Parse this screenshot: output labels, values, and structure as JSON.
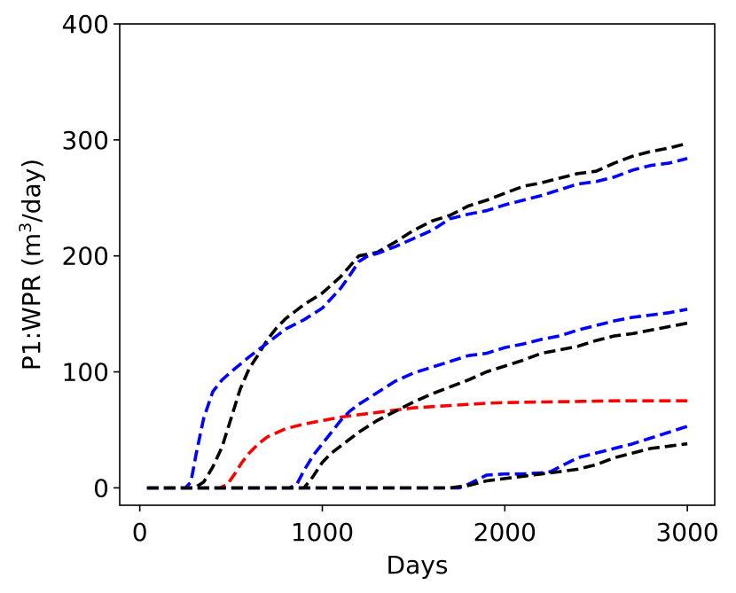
{
  "chart_data": {
    "type": "line",
    "xlabel": "Days",
    "ylabel_prefix": "P1:WPR (m",
    "ylabel_sup": "3",
    "ylabel_suffix": "/day)",
    "xlim": [
      -110,
      3150
    ],
    "ylim": [
      -15,
      400
    ],
    "xticks": [
      0,
      1000,
      2000,
      3000
    ],
    "yticks": [
      0,
      100,
      200,
      300,
      400
    ],
    "xtick_labels": [
      "0",
      "1000",
      "2000",
      "3000"
    ],
    "ytick_labels": [
      "0",
      "100",
      "200",
      "300",
      "400"
    ],
    "grid": false,
    "series": [
      {
        "color": "#000000",
        "x": [
          40,
          300,
          350,
          400,
          450,
          500,
          550,
          600,
          650,
          700,
          750,
          800,
          900,
          1000,
          1100,
          1200,
          1300,
          1400,
          1500,
          1600,
          1700,
          1800,
          1900,
          2000,
          2100,
          2200,
          2300,
          2400,
          2500,
          2600,
          2700,
          2800,
          2900,
          3000
        ],
        "y": [
          0,
          0,
          5,
          18,
          35,
          60,
          85,
          103,
          115,
          128,
          138,
          146,
          158,
          168,
          182,
          200,
          203,
          212,
          222,
          230,
          235,
          243,
          248,
          254,
          260,
          263,
          267,
          271,
          273,
          280,
          286,
          290,
          293,
          297
        ]
      },
      {
        "color": "#0000ff",
        "x": [
          40,
          250,
          280,
          310,
          350,
          400,
          450,
          500,
          600,
          700,
          800,
          900,
          1000,
          1100,
          1150,
          1200,
          1250,
          1300,
          1400,
          1500,
          1600,
          1700,
          1800,
          1900,
          2000,
          2100,
          2200,
          2300,
          2400,
          2500,
          2600,
          2700,
          2800,
          2900,
          3000
        ],
        "y": [
          0,
          0,
          5,
          30,
          60,
          83,
          93,
          100,
          113,
          125,
          137,
          145,
          155,
          172,
          183,
          195,
          200,
          202,
          208,
          215,
          222,
          232,
          236,
          239,
          244,
          248,
          252,
          257,
          262,
          264,
          268,
          274,
          278,
          280,
          284
        ]
      },
      {
        "color": "#ff0000",
        "x": [
          40,
          440,
          480,
          520,
          560,
          600,
          650,
          700,
          800,
          900,
          1000,
          1100,
          1200,
          1300,
          1400,
          1500,
          1600,
          1700,
          1800,
          1900,
          2000,
          2200,
          2400,
          2600,
          2800,
          3000
        ],
        "y": [
          0,
          0,
          3,
          12,
          22,
          30,
          38,
          44,
          51,
          55,
          58,
          61,
          63,
          65,
          67,
          69,
          70,
          71,
          72,
          73,
          73.5,
          74,
          74.5,
          75,
          75,
          75
        ]
      },
      {
        "color": "#0000ff",
        "x": [
          40,
          820,
          860,
          900,
          950,
          1000,
          1050,
          1100,
          1150,
          1200,
          1300,
          1400,
          1500,
          1600,
          1700,
          1800,
          1900,
          2000,
          2100,
          2200,
          2300,
          2400,
          2500,
          2600,
          2700,
          2800,
          2900,
          3000
        ],
        "y": [
          0,
          0,
          3,
          15,
          28,
          38,
          48,
          58,
          66,
          72,
          82,
          92,
          99,
          104,
          109,
          114,
          116,
          121,
          124,
          128,
          131,
          136,
          140,
          144,
          147,
          149,
          151,
          154
        ]
      },
      {
        "color": "#000000",
        "x": [
          40,
          900,
          950,
          1000,
          1050,
          1100,
          1200,
          1300,
          1400,
          1500,
          1600,
          1700,
          1800,
          1900,
          2000,
          2100,
          2200,
          2300,
          2400,
          2500,
          2600,
          2700,
          2800,
          2900,
          3000
        ],
        "y": [
          0,
          0,
          10,
          22,
          30,
          36,
          48,
          58,
          66,
          74,
          81,
          87,
          93,
          100,
          105,
          110,
          116,
          119,
          122,
          127,
          131,
          133,
          136,
          139,
          142
        ]
      },
      {
        "color": "#0000ff",
        "x": [
          40,
          1750,
          1800,
          1850,
          1900,
          2000,
          2100,
          2200,
          2250,
          2300,
          2350,
          2400,
          2500,
          2600,
          2700,
          2800,
          2900,
          3000
        ],
        "y": [
          0,
          0,
          3,
          7,
          11,
          12,
          12,
          13,
          14,
          18,
          22,
          26,
          30,
          34,
          38,
          43,
          48,
          53
        ]
      },
      {
        "color": "#000000",
        "x": [
          40,
          1700,
          1800,
          1900,
          2000,
          2100,
          2200,
          2300,
          2400,
          2500,
          2550,
          2600,
          2700,
          2800,
          2900,
          3000
        ],
        "y": [
          0,
          0,
          2,
          6,
          8,
          10,
          12,
          14,
          16,
          20,
          23,
          26,
          30,
          34,
          36,
          38
        ]
      }
    ]
  }
}
